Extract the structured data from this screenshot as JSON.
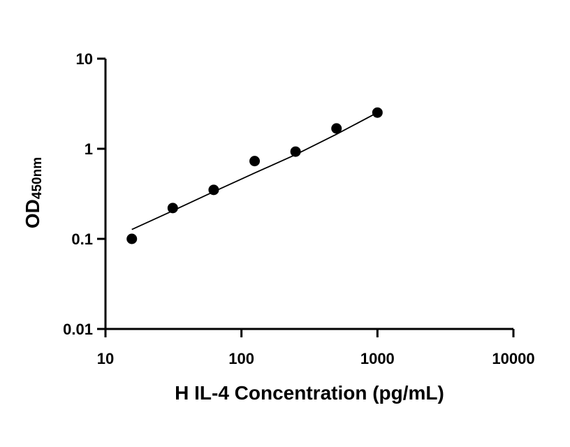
{
  "chart_data": {
    "type": "scatter",
    "xlabel": "H IL-4 Concentration (pg/mL)",
    "ylabel_main": "OD",
    "ylabel_sub": "450nm",
    "xscale": "log",
    "yscale": "log",
    "xlim": [
      10,
      10000
    ],
    "ylim": [
      0.01,
      10
    ],
    "xticks": [
      "10",
      "100",
      "1000",
      "10000"
    ],
    "yticks": [
      "0.01",
      "0.1",
      "1",
      "10"
    ],
    "grid": false,
    "point_color": "#000000",
    "series": [
      {
        "x": [
          15.625,
          31.25,
          62.5,
          125,
          250,
          500,
          1000
        ],
        "y": [
          0.1,
          0.22,
          0.35,
          0.73,
          0.93,
          1.68,
          2.52
        ]
      }
    ],
    "fit_curve": {
      "x": [
        15.625,
        31.25,
        62.5,
        125,
        250,
        500,
        1000
      ],
      "y": [
        0.127,
        0.205,
        0.334,
        0.538,
        0.86,
        1.45,
        2.52
      ]
    }
  }
}
